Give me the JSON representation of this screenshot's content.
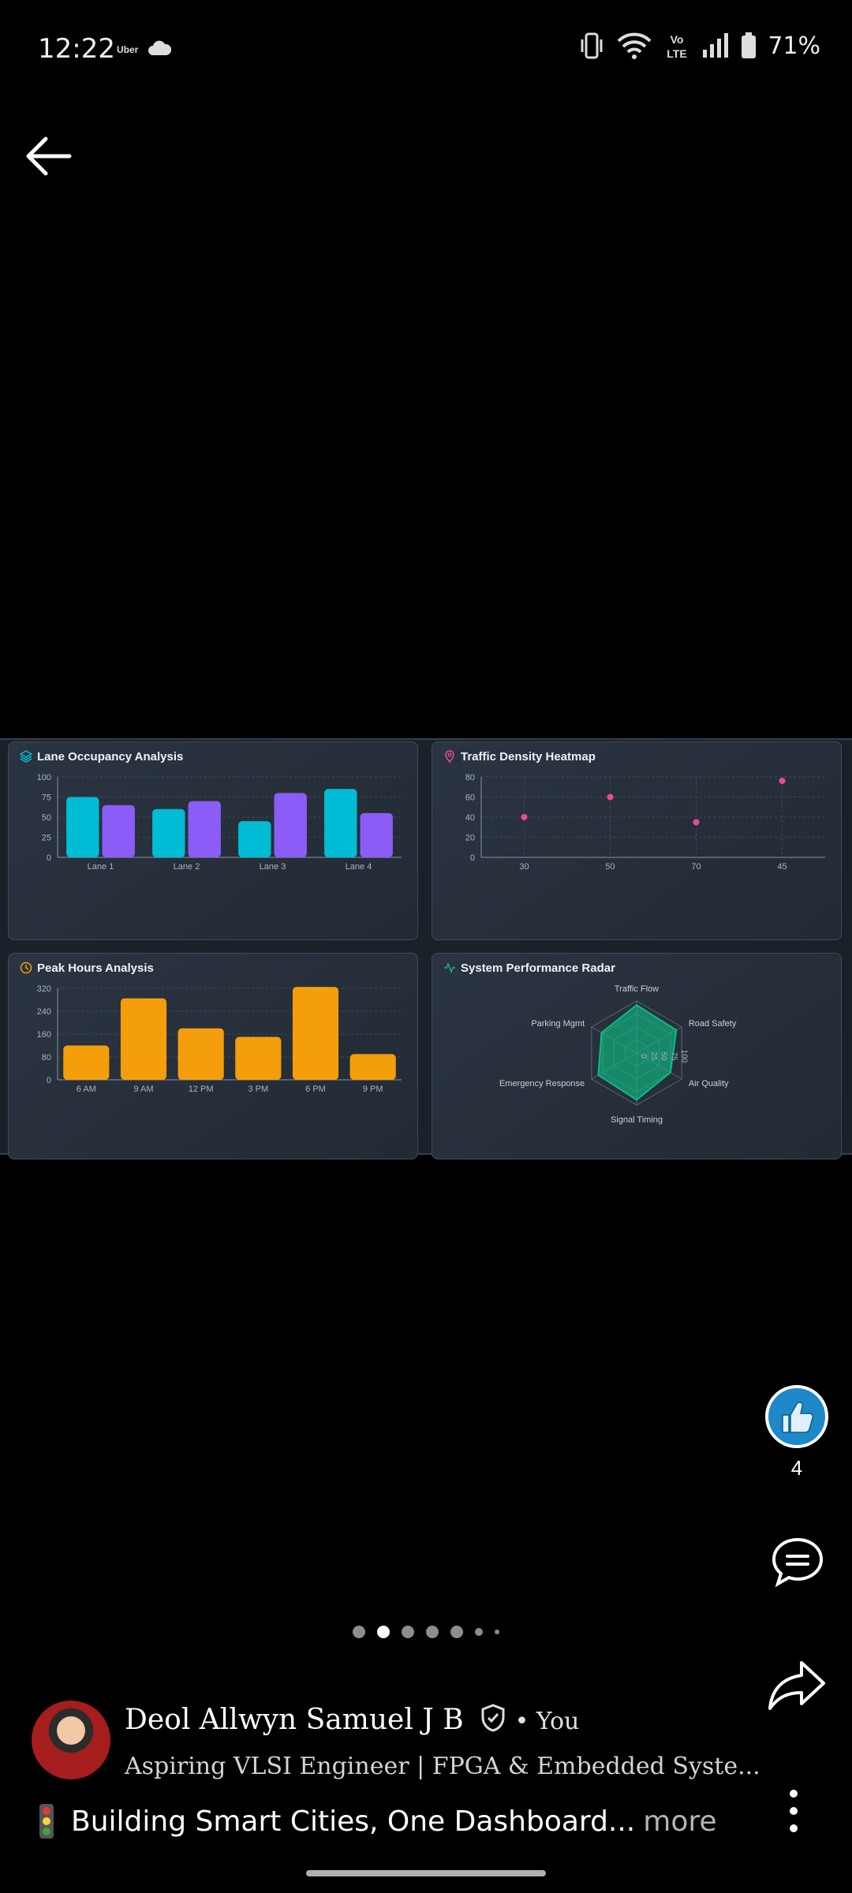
{
  "status": {
    "time": "12:22",
    "app": "Uber",
    "network": "Vo LTE",
    "battery": "71%"
  },
  "colors": {
    "cyan": "#00bcd4",
    "purple": "#8b5cf6",
    "pink": "#ec4899",
    "orange": "#f59e0b",
    "green": "#10b981",
    "like_blue": "#1e88c8"
  },
  "panels": {
    "lane": {
      "title": "Lane Occupancy Analysis",
      "icon": "layers-icon"
    },
    "heatmap": {
      "title": "Traffic Density Heatmap",
      "icon": "map-pin-icon"
    },
    "peak": {
      "title": "Peak Hours Analysis",
      "icon": "clock-icon"
    },
    "radar": {
      "title": "System Performance Radar",
      "icon": "activity-icon"
    }
  },
  "chart_data": [
    {
      "type": "bar",
      "title": "Lane Occupancy Analysis",
      "categories": [
        "Lane 1",
        "Lane 2",
        "Lane 3",
        "Lane 4"
      ],
      "series": [
        {
          "color": "#00bcd4",
          "values": [
            75,
            60,
            45,
            85
          ]
        },
        {
          "color": "#8b5cf6",
          "values": [
            65,
            70,
            80,
            55
          ]
        }
      ],
      "ylim": [
        0,
        100
      ],
      "yticks": [
        0,
        25,
        50,
        75,
        100
      ]
    },
    {
      "type": "scatter",
      "title": "Traffic Density Heatmap",
      "x_categories": [
        "30",
        "50",
        "70",
        "45"
      ],
      "points": [
        {
          "x": "30",
          "y": 40
        },
        {
          "x": "50",
          "y": 60
        },
        {
          "x": "70",
          "y": 35
        },
        {
          "x": "45",
          "y": 76
        }
      ],
      "ylim": [
        0,
        80
      ],
      "yticks": [
        0,
        20,
        40,
        60,
        80
      ],
      "color": "#ec4899"
    },
    {
      "type": "bar",
      "title": "Peak Hours Analysis",
      "categories": [
        "6 AM",
        "9 AM",
        "12 PM",
        "3 PM",
        "6 PM",
        "9 PM"
      ],
      "values": [
        120,
        285,
        180,
        150,
        325,
        90
      ],
      "ylim": [
        0,
        320
      ],
      "yticks": [
        0,
        80,
        160,
        240,
        320
      ],
      "color": "#f59e0b"
    },
    {
      "type": "radar",
      "title": "System Performance Radar",
      "axes": [
        "Traffic Flow",
        "Road Safety",
        "Air Quality",
        "Signal Timing",
        "Emergency Response",
        "Parking Mgmt"
      ],
      "values": [
        92,
        88,
        75,
        90,
        85,
        78
      ],
      "rlim": [
        0,
        100
      ],
      "rticks": [
        "0",
        "25",
        "50",
        "75",
        "100"
      ],
      "color": "#10b981"
    }
  ],
  "actions": {
    "like_count": "4"
  },
  "carousel": {
    "count": 7,
    "active": 1
  },
  "post": {
    "author": "Deol Allwyn Samuel J B",
    "byline": "• You",
    "headline": "Aspiring VLSI Engineer | FPGA & Embedded Syste...",
    "caption": "Building Smart Cities, One Dashboard...",
    "more": "more",
    "caption_emoji": "traffic-light-icon"
  }
}
